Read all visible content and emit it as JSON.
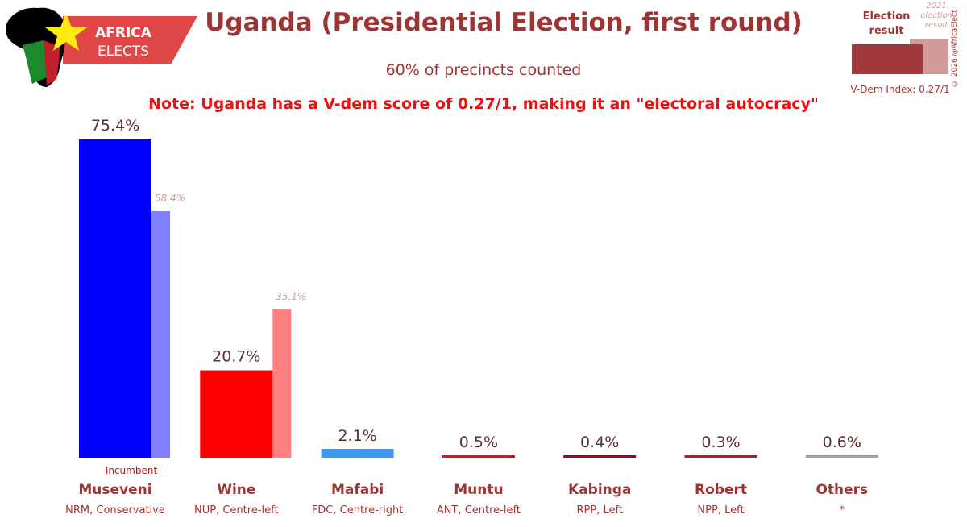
{
  "logo": {
    "line1": "AFRICA",
    "line2": "ELECTS"
  },
  "header": {
    "title": "Uganda (Presidential Election, first round)",
    "subtitle": "60% of precincts counted",
    "note": "Note: Uganda has a V-dem score of 0.27/1, making it an \"electoral autocracy\""
  },
  "legend": {
    "current_label": "Election result",
    "previous_label": "2021 election result",
    "vdem": "V-Dem Index: 0.27/1",
    "copyright": "© 2026 @AfricaElect"
  },
  "colors": {
    "brand": "#9e3535",
    "note": "#e8110f"
  },
  "chart_data": {
    "type": "bar",
    "title": "Uganda (Presidential Election, first round)",
    "ylim": [
      0,
      80
    ],
    "unit": "%",
    "categories": [
      {
        "name": "Museveni",
        "party": "NRM, Conservative",
        "value": 75.4,
        "value_label": "75.4%",
        "previous": 58.4,
        "previous_label": "58.4%",
        "color": "#0000ff",
        "prev_color": "#8080ff",
        "incumbent_label": "Incumbent"
      },
      {
        "name": "Wine",
        "party": "NUP, Centre-left",
        "value": 20.7,
        "value_label": "20.7%",
        "previous": 35.1,
        "previous_label": "35.1%",
        "color": "#ff0000",
        "prev_color": "#ff8080"
      },
      {
        "name": "Mafabi",
        "party": "FDC, Centre-right",
        "value": 2.1,
        "value_label": "2.1%",
        "color": "#3d99f0"
      },
      {
        "name": "Muntu",
        "party": "ANT, Centre-left",
        "value": 0.5,
        "value_label": "0.5%",
        "color": "#dd1111"
      },
      {
        "name": "Kabinga",
        "party": "RPP, Left",
        "value": 0.4,
        "value_label": "0.4%",
        "color": "#8b1414"
      },
      {
        "name": "Robert",
        "party": "NPP, Left",
        "value": 0.3,
        "value_label": "0.3%",
        "color": "#a02828"
      },
      {
        "name": "Others",
        "party": "*",
        "value": 0.6,
        "value_label": "0.6%",
        "color": "#a0a0a0"
      }
    ]
  }
}
